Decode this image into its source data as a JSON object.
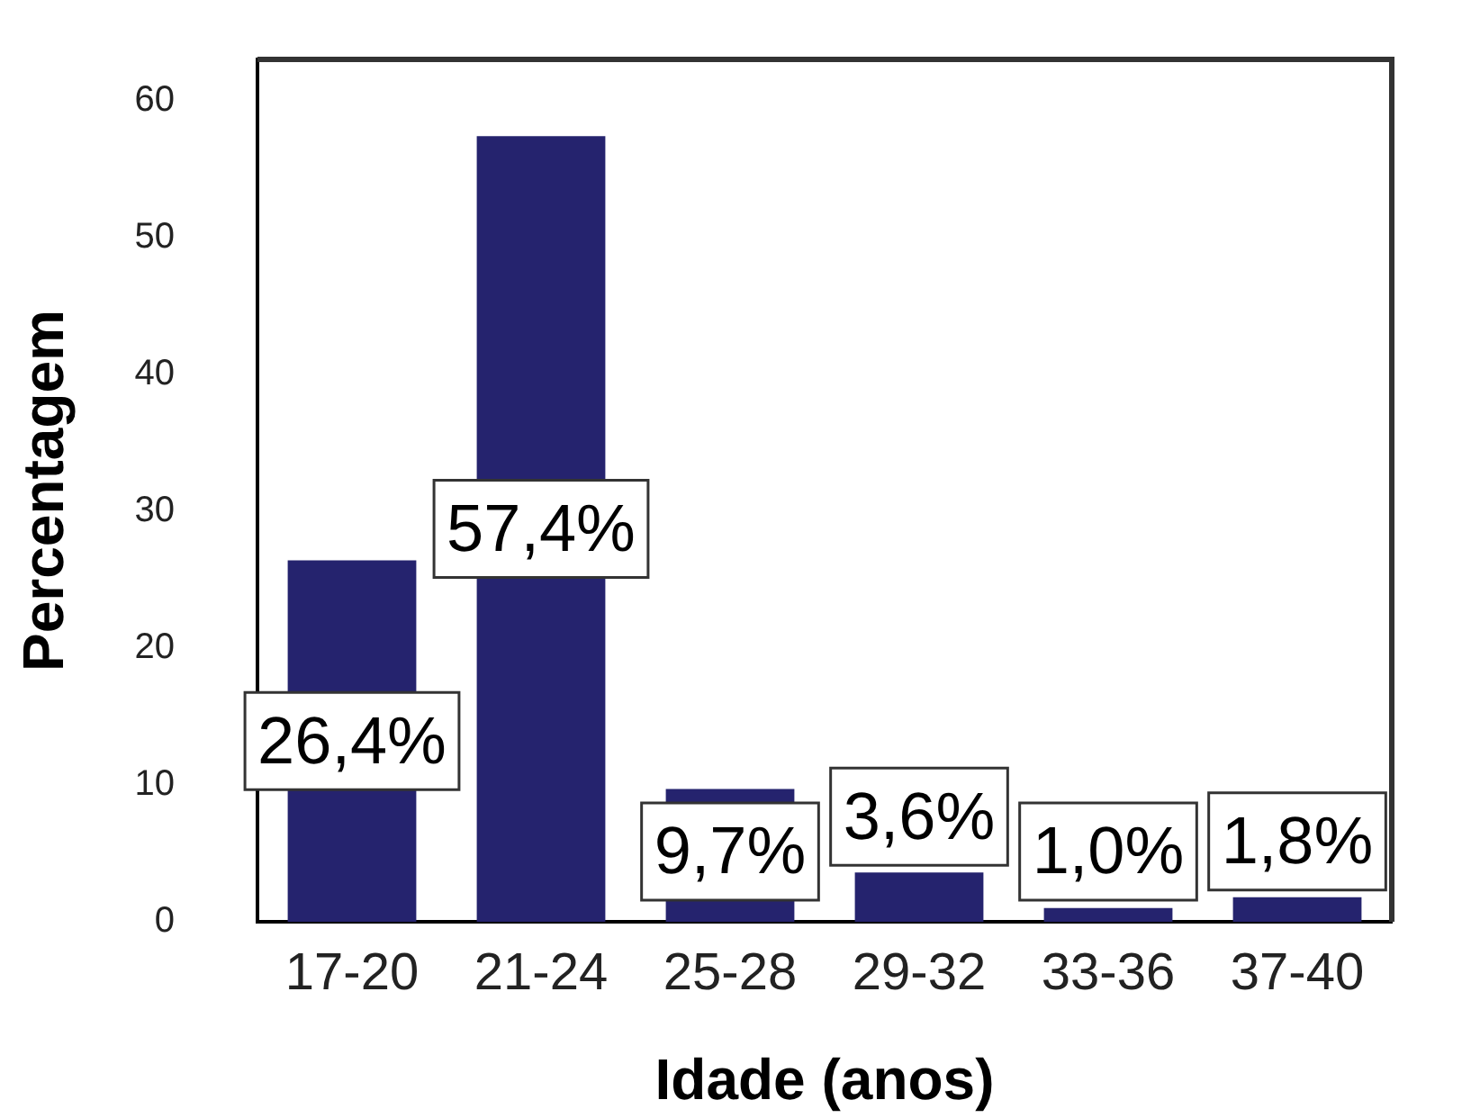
{
  "chart_data": {
    "type": "bar",
    "xlabel": "Idade (anos)",
    "ylabel": "Percentagem",
    "categories": [
      "17-20",
      "21-24",
      "25-28",
      "29-32",
      "33-36",
      "37-40"
    ],
    "values": [
      26.4,
      57.4,
      9.7,
      3.6,
      1.0,
      1.8
    ],
    "color": "#25236e",
    "value_labels": [
      "26,4%",
      "57,4%",
      "9,7%",
      "3,6%",
      "1,0%",
      "1,8%"
    ],
    "ylim": [
      0,
      63
    ],
    "yticks": [
      0,
      10,
      20,
      30,
      40,
      50,
      60
    ]
  }
}
